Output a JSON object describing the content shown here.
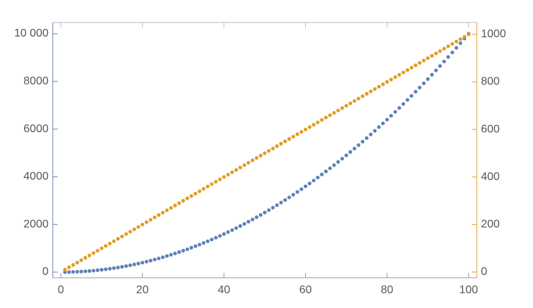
{
  "chart_data": {
    "type": "scatter",
    "x": [
      1,
      2,
      3,
      4,
      5,
      6,
      7,
      8,
      9,
      10,
      11,
      12,
      13,
      14,
      15,
      16,
      17,
      18,
      19,
      20,
      21,
      22,
      23,
      24,
      25,
      26,
      27,
      28,
      29,
      30,
      31,
      32,
      33,
      34,
      35,
      36,
      37,
      38,
      39,
      40,
      41,
      42,
      43,
      44,
      45,
      46,
      47,
      48,
      49,
      50,
      51,
      52,
      53,
      54,
      55,
      56,
      57,
      58,
      59,
      60,
      61,
      62,
      63,
      64,
      65,
      66,
      67,
      68,
      69,
      70,
      71,
      72,
      73,
      74,
      75,
      76,
      77,
      78,
      79,
      80,
      81,
      82,
      83,
      84,
      85,
      86,
      87,
      88,
      89,
      90,
      91,
      92,
      93,
      94,
      95,
      96,
      97,
      98,
      99,
      100
    ],
    "series": [
      {
        "color": "#5e81b5",
        "axis": "y",
        "values": [
          1,
          4,
          9,
          16,
          25,
          36,
          49,
          64,
          81,
          100,
          121,
          144,
          169,
          196,
          225,
          256,
          289,
          324,
          361,
          400,
          441,
          484,
          529,
          576,
          625,
          676,
          729,
          784,
          841,
          900,
          961,
          1024,
          1089,
          1156,
          1225,
          1296,
          1369,
          1444,
          1521,
          1600,
          1681,
          1764,
          1849,
          1936,
          2025,
          2116,
          2209,
          2304,
          2401,
          2500,
          2601,
          2704,
          2809,
          2916,
          3025,
          3136,
          3249,
          3364,
          3481,
          3600,
          3721,
          3844,
          3969,
          4096,
          4225,
          4356,
          4489,
          4624,
          4761,
          4900,
          5041,
          5184,
          5329,
          5476,
          5625,
          5776,
          5929,
          6084,
          6241,
          6400,
          6561,
          6724,
          6889,
          7056,
          7225,
          7396,
          7569,
          7744,
          7921,
          8100,
          8281,
          8464,
          8649,
          8836,
          9025,
          9216,
          9409,
          9604,
          9801,
          10000
        ]
      },
      {
        "color": "#e19c24",
        "axis": "y2",
        "values": [
          10,
          20,
          30,
          40,
          50,
          60,
          70,
          80,
          90,
          100,
          110,
          120,
          130,
          140,
          150,
          160,
          170,
          180,
          190,
          200,
          210,
          220,
          230,
          240,
          250,
          260,
          270,
          280,
          290,
          300,
          310,
          320,
          330,
          340,
          350,
          360,
          370,
          380,
          390,
          400,
          410,
          420,
          430,
          440,
          450,
          460,
          470,
          480,
          490,
          500,
          510,
          520,
          530,
          540,
          550,
          560,
          570,
          580,
          590,
          600,
          610,
          620,
          630,
          640,
          650,
          660,
          670,
          680,
          690,
          700,
          710,
          720,
          730,
          740,
          750,
          760,
          770,
          780,
          790,
          800,
          810,
          820,
          830,
          840,
          850,
          860,
          870,
          880,
          890,
          900,
          910,
          920,
          930,
          940,
          950,
          960,
          970,
          980,
          990,
          1000
        ]
      }
    ],
    "xlim": [
      -2,
      102
    ],
    "xticks": [
      0,
      20,
      40,
      60,
      80,
      100
    ],
    "ylim": [
      -236,
      10472
    ],
    "yticks": [
      0,
      2000,
      4000,
      6000,
      8000,
      {
        "value": 10000,
        "label": "10 000"
      }
    ],
    "y2lim": [
      -24,
      1050
    ],
    "y2ticks": [
      0,
      200,
      400,
      600,
      800,
      1000
    ]
  }
}
